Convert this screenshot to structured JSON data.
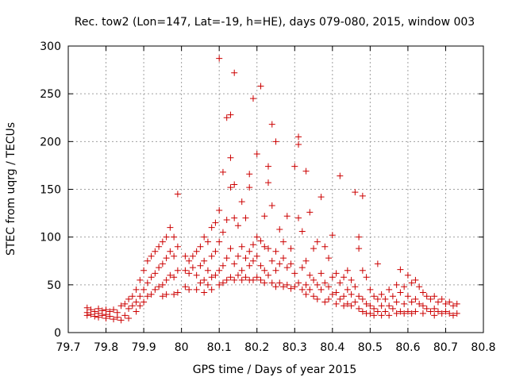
{
  "chart_data": {
    "type": "scatter",
    "title": "Rec. tow2 (Lon=147, Lat=-19, h=HE), days 079-080, 2015, window 003",
    "xlabel": "GPS time / Days of year 2015",
    "ylabel": "STEC from uqrg / TECUs",
    "xlim": [
      79.7,
      80.8
    ],
    "ylim": [
      0,
      300
    ],
    "xticks": [
      "79.7",
      "79.8",
      "79.9",
      "80",
      "80.1",
      "80.2",
      "80.3",
      "80.4",
      "80.5",
      "80.6",
      "80.7",
      "80.8"
    ],
    "yticks": [
      "0",
      "50",
      "100",
      "150",
      "200",
      "250",
      "300"
    ],
    "grid": true,
    "marker": "+",
    "color": "#cc0000",
    "points": [
      [
        79.75,
        26
      ],
      [
        79.75,
        21
      ],
      [
        79.75,
        18
      ],
      [
        79.76,
        24
      ],
      [
        79.76,
        19
      ],
      [
        79.77,
        22
      ],
      [
        79.77,
        17
      ],
      [
        79.78,
        25
      ],
      [
        79.78,
        20
      ],
      [
        79.78,
        16
      ],
      [
        79.79,
        23
      ],
      [
        79.79,
        18
      ],
      [
        79.8,
        24
      ],
      [
        79.8,
        19
      ],
      [
        79.8,
        15
      ],
      [
        79.81,
        22
      ],
      [
        79.81,
        17
      ],
      [
        79.82,
        24
      ],
      [
        79.82,
        14
      ],
      [
        79.83,
        21
      ],
      [
        79.83,
        16
      ],
      [
        79.84,
        28
      ],
      [
        79.84,
        13
      ],
      [
        79.85,
        30
      ],
      [
        79.85,
        18
      ],
      [
        79.86,
        35
      ],
      [
        79.86,
        25
      ],
      [
        79.86,
        15
      ],
      [
        79.87,
        38
      ],
      [
        79.87,
        28
      ],
      [
        79.88,
        45
      ],
      [
        79.88,
        32
      ],
      [
        79.88,
        22
      ],
      [
        79.89,
        55
      ],
      [
        79.89,
        38
      ],
      [
        79.89,
        28
      ],
      [
        79.9,
        65
      ],
      [
        79.9,
        45
      ],
      [
        79.9,
        32
      ],
      [
        79.91,
        75
      ],
      [
        79.91,
        52
      ],
      [
        79.91,
        38
      ],
      [
        79.92,
        80
      ],
      [
        79.92,
        58
      ],
      [
        79.92,
        40
      ],
      [
        79.93,
        85
      ],
      [
        79.93,
        62
      ],
      [
        79.93,
        45
      ],
      [
        79.94,
        90
      ],
      [
        79.94,
        68
      ],
      [
        79.94,
        48
      ],
      [
        79.95,
        95
      ],
      [
        79.95,
        72
      ],
      [
        79.95,
        50
      ],
      [
        79.95,
        38
      ],
      [
        79.96,
        100
      ],
      [
        79.96,
        78
      ],
      [
        79.96,
        55
      ],
      [
        79.96,
        40
      ],
      [
        79.97,
        110
      ],
      [
        79.97,
        85
      ],
      [
        79.97,
        60
      ],
      [
        79.98,
        100
      ],
      [
        79.98,
        80
      ],
      [
        79.98,
        58
      ],
      [
        79.98,
        40
      ],
      [
        79.99,
        145
      ],
      [
        79.99,
        90
      ],
      [
        79.99,
        65
      ],
      [
        79.99,
        42
      ],
      [
        80.01,
        80
      ],
      [
        80.01,
        65
      ],
      [
        80.01,
        48
      ],
      [
        80.02,
        75
      ],
      [
        80.02,
        62
      ],
      [
        80.02,
        45
      ],
      [
        80.03,
        80
      ],
      [
        80.03,
        68
      ],
      [
        80.04,
        85
      ],
      [
        80.04,
        60
      ],
      [
        80.04,
        45
      ],
      [
        80.05,
        90
      ],
      [
        80.05,
        70
      ],
      [
        80.05,
        52
      ],
      [
        80.06,
        100
      ],
      [
        80.06,
        75
      ],
      [
        80.06,
        55
      ],
      [
        80.06,
        42
      ],
      [
        80.07,
        95
      ],
      [
        80.07,
        65
      ],
      [
        80.07,
        50
      ],
      [
        80.08,
        110
      ],
      [
        80.08,
        80
      ],
      [
        80.08,
        58
      ],
      [
        80.08,
        45
      ],
      [
        80.09,
        115
      ],
      [
        80.09,
        85
      ],
      [
        80.09,
        60
      ],
      [
        80.1,
        287
      ],
      [
        80.1,
        128
      ],
      [
        80.1,
        95
      ],
      [
        80.1,
        65
      ],
      [
        80.1,
        50
      ],
      [
        80.11,
        168
      ],
      [
        80.11,
        105
      ],
      [
        80.11,
        70
      ],
      [
        80.11,
        52
      ],
      [
        80.12,
        225
      ],
      [
        80.12,
        118
      ],
      [
        80.12,
        78
      ],
      [
        80.12,
        55
      ],
      [
        80.13,
        228
      ],
      [
        80.13,
        183
      ],
      [
        80.13,
        152
      ],
      [
        80.13,
        88
      ],
      [
        80.13,
        58
      ],
      [
        80.14,
        272
      ],
      [
        80.14,
        155
      ],
      [
        80.14,
        120
      ],
      [
        80.14,
        72
      ],
      [
        80.14,
        55
      ],
      [
        80.15,
        112
      ],
      [
        80.15,
        80
      ],
      [
        80.15,
        60
      ],
      [
        80.16,
        137
      ],
      [
        80.16,
        90
      ],
      [
        80.16,
        65
      ],
      [
        80.16,
        55
      ],
      [
        80.17,
        120
      ],
      [
        80.17,
        78
      ],
      [
        80.17,
        58
      ],
      [
        80.18,
        166
      ],
      [
        80.18,
        152
      ],
      [
        80.18,
        85
      ],
      [
        80.18,
        70
      ],
      [
        80.18,
        55
      ],
      [
        80.19,
        245
      ],
      [
        80.19,
        92
      ],
      [
        80.19,
        75
      ],
      [
        80.19,
        55
      ],
      [
        80.2,
        187
      ],
      [
        80.2,
        100
      ],
      [
        80.2,
        80
      ],
      [
        80.2,
        58
      ],
      [
        80.21,
        258
      ],
      [
        80.21,
        96
      ],
      [
        80.21,
        70
      ],
      [
        80.21,
        55
      ],
      [
        80.22,
        122
      ],
      [
        80.22,
        90
      ],
      [
        80.22,
        65
      ],
      [
        80.22,
        52
      ],
      [
        80.23,
        174
      ],
      [
        80.23,
        157
      ],
      [
        80.23,
        88
      ],
      [
        80.23,
        60
      ],
      [
        80.24,
        218
      ],
      [
        80.24,
        133
      ],
      [
        80.24,
        75
      ],
      [
        80.24,
        52
      ],
      [
        80.25,
        200
      ],
      [
        80.25,
        85
      ],
      [
        80.25,
        65
      ],
      [
        80.25,
        48
      ],
      [
        80.26,
        108
      ],
      [
        80.26,
        72
      ],
      [
        80.26,
        52
      ],
      [
        80.27,
        95
      ],
      [
        80.27,
        78
      ],
      [
        80.27,
        48
      ],
      [
        80.28,
        122
      ],
      [
        80.28,
        68
      ],
      [
        80.28,
        50
      ],
      [
        80.29,
        88
      ],
      [
        80.29,
        72
      ],
      [
        80.29,
        46
      ],
      [
        80.3,
        174
      ],
      [
        80.3,
        62
      ],
      [
        80.3,
        48
      ],
      [
        80.31,
        205
      ],
      [
        80.31,
        197
      ],
      [
        80.31,
        120
      ],
      [
        80.31,
        52
      ],
      [
        80.32,
        106
      ],
      [
        80.32,
        68
      ],
      [
        80.32,
        45
      ],
      [
        80.33,
        169
      ],
      [
        80.33,
        75
      ],
      [
        80.33,
        50
      ],
      [
        80.33,
        40
      ],
      [
        80.34,
        126
      ],
      [
        80.34,
        60
      ],
      [
        80.34,
        45
      ],
      [
        80.35,
        88
      ],
      [
        80.35,
        55
      ],
      [
        80.35,
        38
      ],
      [
        80.36,
        95
      ],
      [
        80.36,
        50
      ],
      [
        80.36,
        35
      ],
      [
        80.37,
        142
      ],
      [
        80.37,
        62
      ],
      [
        80.37,
        45
      ],
      [
        80.38,
        90
      ],
      [
        80.38,
        52
      ],
      [
        80.38,
        32
      ],
      [
        80.39,
        78
      ],
      [
        80.39,
        48
      ],
      [
        80.39,
        35
      ],
      [
        80.4,
        102
      ],
      [
        80.4,
        58
      ],
      [
        80.4,
        40
      ],
      [
        80.41,
        62
      ],
      [
        80.41,
        42
      ],
      [
        80.41,
        30
      ],
      [
        80.42,
        164
      ],
      [
        80.42,
        52
      ],
      [
        80.42,
        35
      ],
      [
        80.43,
        58
      ],
      [
        80.43,
        38
      ],
      [
        80.43,
        28
      ],
      [
        80.44,
        65
      ],
      [
        80.44,
        45
      ],
      [
        80.44,
        30
      ],
      [
        80.45,
        55
      ],
      [
        80.45,
        40
      ],
      [
        80.45,
        28
      ],
      [
        80.46,
        147
      ],
      [
        80.46,
        48
      ],
      [
        80.46,
        32
      ],
      [
        80.47,
        100
      ],
      [
        80.47,
        88
      ],
      [
        80.47,
        38
      ],
      [
        80.47,
        25
      ],
      [
        80.48,
        143
      ],
      [
        80.48,
        65
      ],
      [
        80.48,
        35
      ],
      [
        80.48,
        22
      ],
      [
        80.49,
        58
      ],
      [
        80.49,
        30
      ],
      [
        80.49,
        20
      ],
      [
        80.5,
        45
      ],
      [
        80.5,
        28
      ],
      [
        80.5,
        20
      ],
      [
        80.51,
        38
      ],
      [
        80.51,
        25
      ],
      [
        80.51,
        18
      ],
      [
        80.52,
        72
      ],
      [
        80.52,
        35
      ],
      [
        80.52,
        22
      ],
      [
        80.53,
        40
      ],
      [
        80.53,
        28
      ],
      [
        80.53,
        18
      ],
      [
        80.54,
        35
      ],
      [
        80.54,
        22
      ],
      [
        80.55,
        45
      ],
      [
        80.55,
        28
      ],
      [
        80.55,
        18
      ],
      [
        80.56,
        38
      ],
      [
        80.56,
        25
      ],
      [
        80.57,
        50
      ],
      [
        80.57,
        32
      ],
      [
        80.57,
        20
      ],
      [
        80.58,
        66
      ],
      [
        80.58,
        42
      ],
      [
        80.58,
        22
      ],
      [
        80.59,
        48
      ],
      [
        80.59,
        30
      ],
      [
        80.59,
        20
      ],
      [
        80.6,
        60
      ],
      [
        80.6,
        38
      ],
      [
        80.6,
        22
      ],
      [
        80.61,
        52
      ],
      [
        80.61,
        32
      ],
      [
        80.61,
        20
      ],
      [
        80.62,
        55
      ],
      [
        80.62,
        35
      ],
      [
        80.62,
        22
      ],
      [
        80.63,
        48
      ],
      [
        80.63,
        30
      ],
      [
        80.64,
        42
      ],
      [
        80.64,
        28
      ],
      [
        80.64,
        20
      ],
      [
        80.65,
        38
      ],
      [
        80.65,
        25
      ],
      [
        80.66,
        35
      ],
      [
        80.66,
        22
      ],
      [
        80.67,
        38
      ],
      [
        80.67,
        25
      ],
      [
        80.67,
        18
      ],
      [
        80.68,
        32
      ],
      [
        80.68,
        22
      ],
      [
        80.69,
        35
      ],
      [
        80.69,
        20
      ],
      [
        80.7,
        30
      ],
      [
        80.7,
        22
      ],
      [
        80.71,
        32
      ],
      [
        80.71,
        20
      ],
      [
        80.72,
        28
      ],
      [
        80.72,
        18
      ],
      [
        80.73,
        30
      ],
      [
        80.73,
        20
      ]
    ]
  }
}
